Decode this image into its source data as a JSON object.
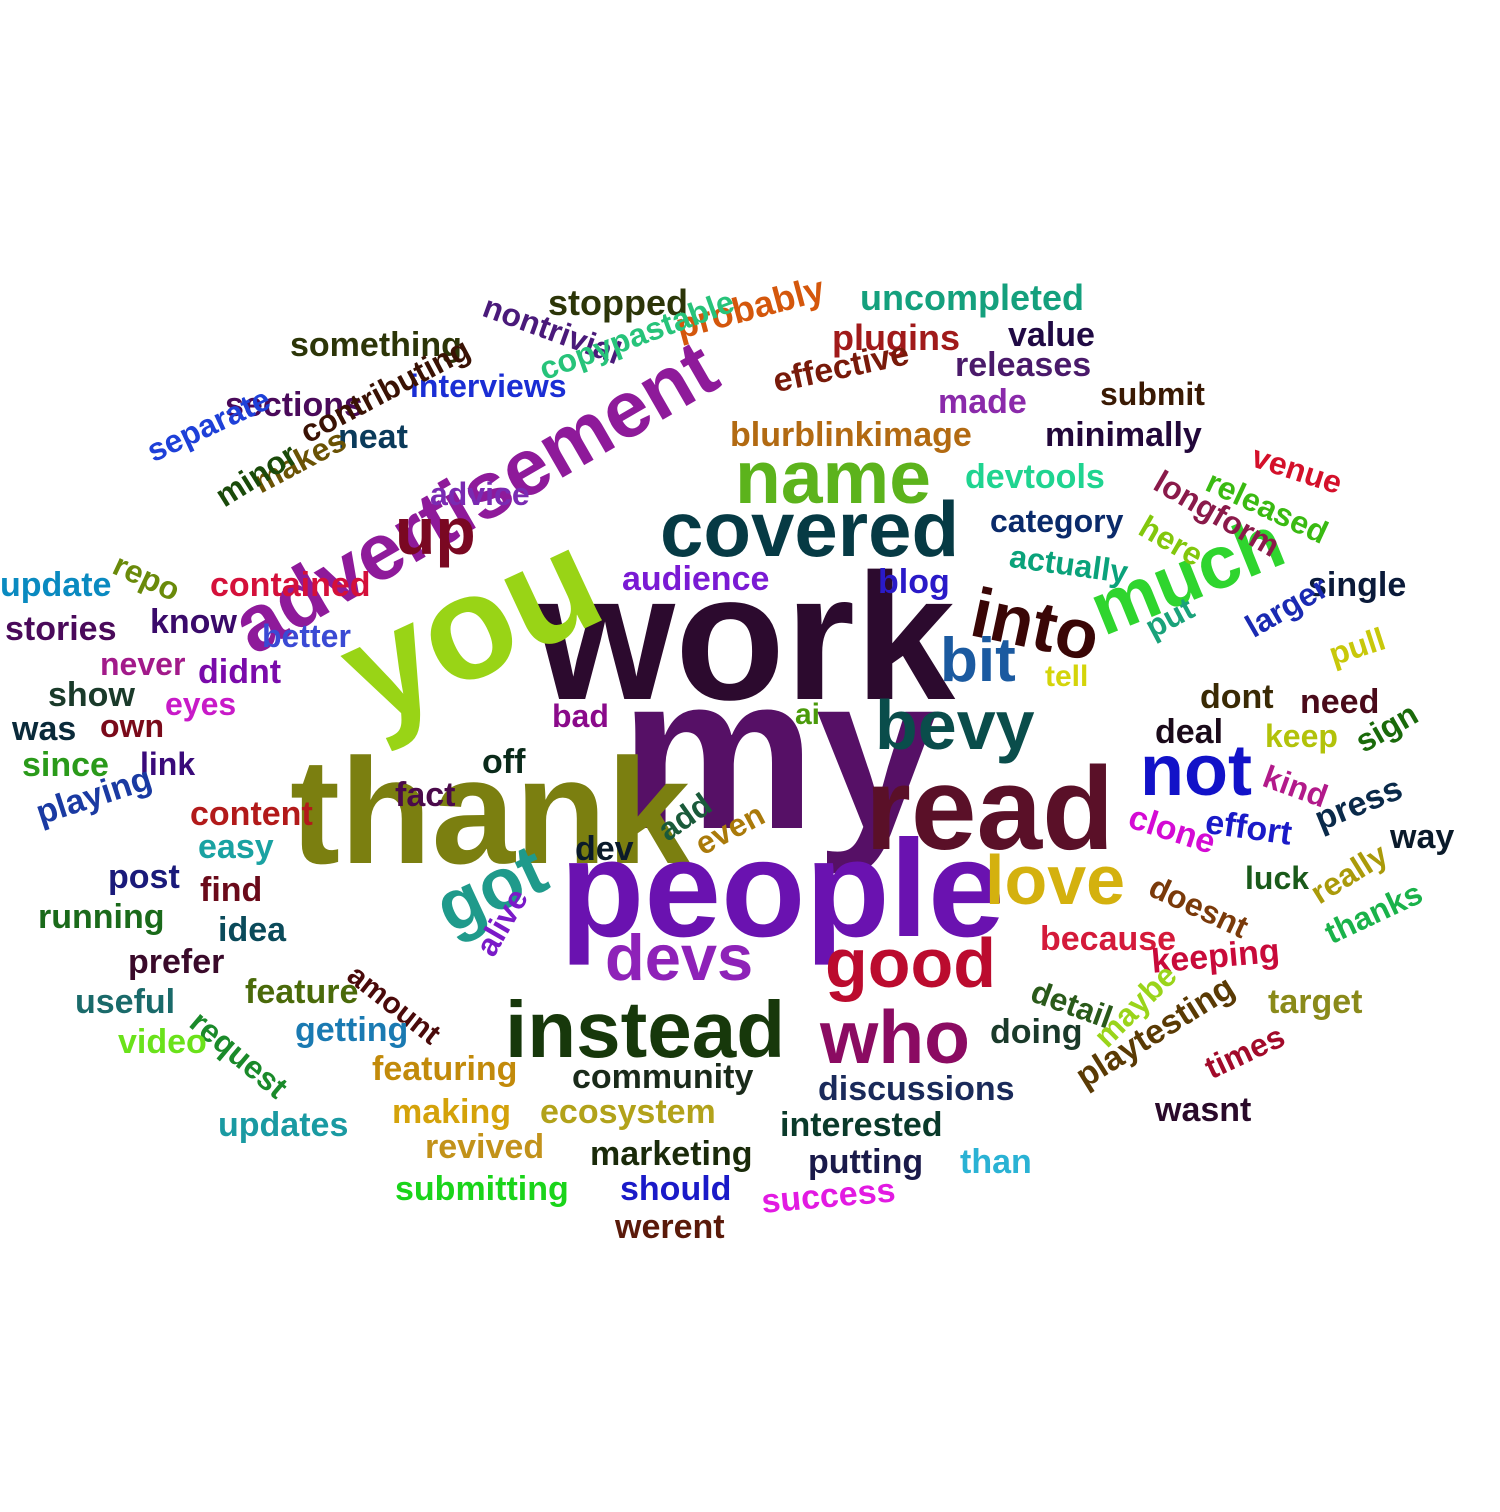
{
  "words": [
    {
      "text": "work",
      "color": "#2c0a2e"
    },
    {
      "text": "my",
      "color": "#561066"
    },
    {
      "text": "thank",
      "color": "#7b7f10"
    },
    {
      "text": "people",
      "color": "#6a12b0"
    },
    {
      "text": "read",
      "color": "#5a1028"
    },
    {
      "text": "you",
      "color": "#99d416"
    },
    {
      "text": "advertisement",
      "color": "#8e1a9a"
    },
    {
      "text": "covered",
      "color": "#063a44"
    },
    {
      "text": "name",
      "color": "#5cb31c"
    },
    {
      "text": "much",
      "color": "#2fd52e"
    },
    {
      "text": "into",
      "color": "#3a0606"
    },
    {
      "text": "instead",
      "color": "#17380b"
    },
    {
      "text": "bevy",
      "color": "#0a4d4b"
    },
    {
      "text": "good",
      "color": "#bb0b2e"
    },
    {
      "text": "love",
      "color": "#d4b10e"
    },
    {
      "text": "devs",
      "color": "#8e22b8"
    },
    {
      "text": "who",
      "color": "#8b0b62"
    },
    {
      "text": "got",
      "color": "#1f9a8b"
    },
    {
      "text": "not",
      "color": "#1212c8"
    },
    {
      "text": "bit",
      "color": "#1b5aa0"
    },
    {
      "text": "up",
      "color": "#7a0822"
    },
    {
      "text": "stopped",
      "color": "#2c3508"
    },
    {
      "text": "probably",
      "color": "#d4570c"
    },
    {
      "text": "uncompleted",
      "color": "#14a07d"
    },
    {
      "text": "nontrivial",
      "color": "#4a1a7a"
    },
    {
      "text": "something",
      "color": "#2c3508"
    },
    {
      "text": "plugins",
      "color": "#a01a1a"
    },
    {
      "text": "value",
      "color": "#200a44"
    },
    {
      "text": "copypastable",
      "color": "#27c37a"
    },
    {
      "text": "interviews",
      "color": "#1a2ed4"
    },
    {
      "text": "releases",
      "color": "#4a1a6a"
    },
    {
      "text": "effective",
      "color": "#781a0a"
    },
    {
      "text": "submit",
      "color": "#3a1a04"
    },
    {
      "text": "sections",
      "color": "#4a0a5a"
    },
    {
      "text": "made",
      "color": "#8a2aaa"
    },
    {
      "text": "neat",
      "color": "#0a3a5a"
    },
    {
      "text": "blurblinkimage",
      "color": "#b26a12"
    },
    {
      "text": "minimally",
      "color": "#22073a"
    },
    {
      "text": "contributing",
      "color": "#3a1204"
    },
    {
      "text": "separate",
      "color": "#1e40d8"
    },
    {
      "text": "venue",
      "color": "#d4102a"
    },
    {
      "text": "longform",
      "color": "#8a1a4a"
    },
    {
      "text": "released",
      "color": "#3aba12"
    },
    {
      "text": "makes",
      "color": "#6a5204"
    },
    {
      "text": "minor",
      "color": "#1a4a0a"
    },
    {
      "text": "advice",
      "color": "#7a2ab2"
    },
    {
      "text": "devtools",
      "color": "#1fd490"
    },
    {
      "text": "category",
      "color": "#0a2a6a"
    },
    {
      "text": "actually",
      "color": "#0aa27a"
    },
    {
      "text": "here",
      "color": "#82c70c"
    },
    {
      "text": "repo",
      "color": "#6a8a0a"
    },
    {
      "text": "update",
      "color": "#0a8ac0"
    },
    {
      "text": "contained",
      "color": "#d4103a"
    },
    {
      "text": "audience",
      "color": "#7a1ad4"
    },
    {
      "text": "blog",
      "color": "#2a1ac8"
    },
    {
      "text": "single",
      "color": "#0a1a3a"
    },
    {
      "text": "stories",
      "color": "#4a0a5a"
    },
    {
      "text": "know",
      "color": "#3a0a6a"
    },
    {
      "text": "better",
      "color": "#3a4ad4"
    },
    {
      "text": "put",
      "color": "#1aa27a"
    },
    {
      "text": "larger",
      "color": "#1a2ab2"
    },
    {
      "text": "pull",
      "color": "#c8c80a"
    },
    {
      "text": "never",
      "color": "#a21a8a"
    },
    {
      "text": "didnt",
      "color": "#7a0aaa"
    },
    {
      "text": "tell",
      "color": "#d4d40a"
    },
    {
      "text": "show",
      "color": "#1a3a2a"
    },
    {
      "text": "eyes",
      "color": "#c81ac8"
    },
    {
      "text": "dont",
      "color": "#3a2a04"
    },
    {
      "text": "need",
      "color": "#4a0a1a"
    },
    {
      "text": "was",
      "color": "#0a2a3a"
    },
    {
      "text": "own",
      "color": "#7a0a1a"
    },
    {
      "text": "bad",
      "color": "#8a0a8a"
    },
    {
      "text": "ai",
      "color": "#4a9a0a"
    },
    {
      "text": "deal",
      "color": "#1a0a1a"
    },
    {
      "text": "keep",
      "color": "#b2c20a"
    },
    {
      "text": "sign",
      "color": "#1a6a0a"
    },
    {
      "text": "since",
      "color": "#2a9a1a"
    },
    {
      "text": "link",
      "color": "#3a0a7a"
    },
    {
      "text": "off",
      "color": "#0a2a1a"
    },
    {
      "text": "kind",
      "color": "#b21a8a"
    },
    {
      "text": "playing",
      "color": "#1a3aa2"
    },
    {
      "text": "fact",
      "color": "#4a0a4a"
    },
    {
      "text": "content",
      "color": "#b21a1a"
    },
    {
      "text": "clone",
      "color": "#d40ad4"
    },
    {
      "text": "effort",
      "color": "#1a1ac8"
    },
    {
      "text": "press",
      "color": "#0a2a4a"
    },
    {
      "text": "way",
      "color": "#0a1a2a"
    },
    {
      "text": "easy",
      "color": "#1aa2a2"
    },
    {
      "text": "dev",
      "color": "#0a1a2a"
    },
    {
      "text": "add",
      "color": "#1a5a3a"
    },
    {
      "text": "even",
      "color": "#aa7a0a"
    },
    {
      "text": "post",
      "color": "#1a1a7a"
    },
    {
      "text": "find",
      "color": "#6a0a1a"
    },
    {
      "text": "doesnt",
      "color": "#7a3a0a"
    },
    {
      "text": "luck",
      "color": "#1a5a1a"
    },
    {
      "text": "really",
      "color": "#aa9a0a"
    },
    {
      "text": "running",
      "color": "#1a6a1a"
    },
    {
      "text": "idea",
      "color": "#0a4a5a"
    },
    {
      "text": "because",
      "color": "#d41a3a"
    },
    {
      "text": "thanks",
      "color": "#1ab24a"
    },
    {
      "text": "alive",
      "color": "#7a1ac8"
    },
    {
      "text": "prefer",
      "color": "#3a0a2a"
    },
    {
      "text": "amount",
      "color": "#4a0a0a"
    },
    {
      "text": "keeping",
      "color": "#c80a3a"
    },
    {
      "text": "detail",
      "color": "#2a5a1a"
    },
    {
      "text": "useful",
      "color": "#1a6a6a"
    },
    {
      "text": "feature",
      "color": "#4a6a0a"
    },
    {
      "text": "request",
      "color": "#1a8a2a"
    },
    {
      "text": "target",
      "color": "#8a8a1a"
    },
    {
      "text": "getting",
      "color": "#1a7ab2"
    },
    {
      "text": "doing",
      "color": "#1a3a2a"
    },
    {
      "text": "maybe",
      "color": "#9ad41a"
    },
    {
      "text": "playtesting",
      "color": "#5a3a04"
    },
    {
      "text": "video",
      "color": "#6ae21a"
    },
    {
      "text": "featuring",
      "color": "#c28a0a"
    },
    {
      "text": "community",
      "color": "#1a2a1a"
    },
    {
      "text": "times",
      "color": "#a20a2a"
    },
    {
      "text": "discussions",
      "color": "#1a2a5a"
    },
    {
      "text": "wasnt",
      "color": "#2a0a2a"
    },
    {
      "text": "updates",
      "color": "#1a9aa2"
    },
    {
      "text": "making",
      "color": "#d4a20a"
    },
    {
      "text": "ecosystem",
      "color": "#b2a21a"
    },
    {
      "text": "interested",
      "color": "#0a3a2a"
    },
    {
      "text": "revived",
      "color": "#c2921a"
    },
    {
      "text": "marketing",
      "color": "#1a2a0a"
    },
    {
      "text": "putting",
      "color": "#1a1a4a"
    },
    {
      "text": "than",
      "color": "#2ab2d4"
    },
    {
      "text": "submitting",
      "color": "#1ad41a"
    },
    {
      "text": "should",
      "color": "#1a1ac8"
    },
    {
      "text": "success",
      "color": "#e21ae2"
    },
    {
      "text": "werent",
      "color": "#5a1a0a"
    }
  ]
}
